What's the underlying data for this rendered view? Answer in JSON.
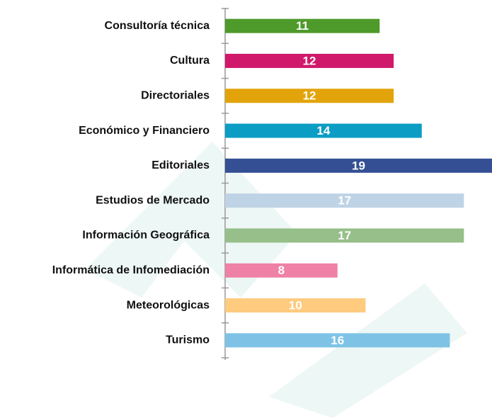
{
  "chart_data": {
    "type": "bar",
    "orientation": "horizontal",
    "categories": [
      "Consultoría técnica",
      "Cultura",
      "Directoriales",
      "Económico y Financiero",
      "Editoriales",
      "Estudios de Mercado",
      "Información Geográfica",
      "Informática de Infomediación",
      "Meteorológicas",
      "Turismo"
    ],
    "values": [
      11,
      12,
      12,
      14,
      19,
      17,
      17,
      8,
      10,
      16
    ],
    "colors": [
      "#4e9a2b",
      "#d0196a",
      "#e2a40a",
      "#0b9dc4",
      "#344f93",
      "#bfd3e6",
      "#96bf8a",
      "#ee81a5",
      "#fecb7f",
      "#7ec3e6"
    ]
  }
}
